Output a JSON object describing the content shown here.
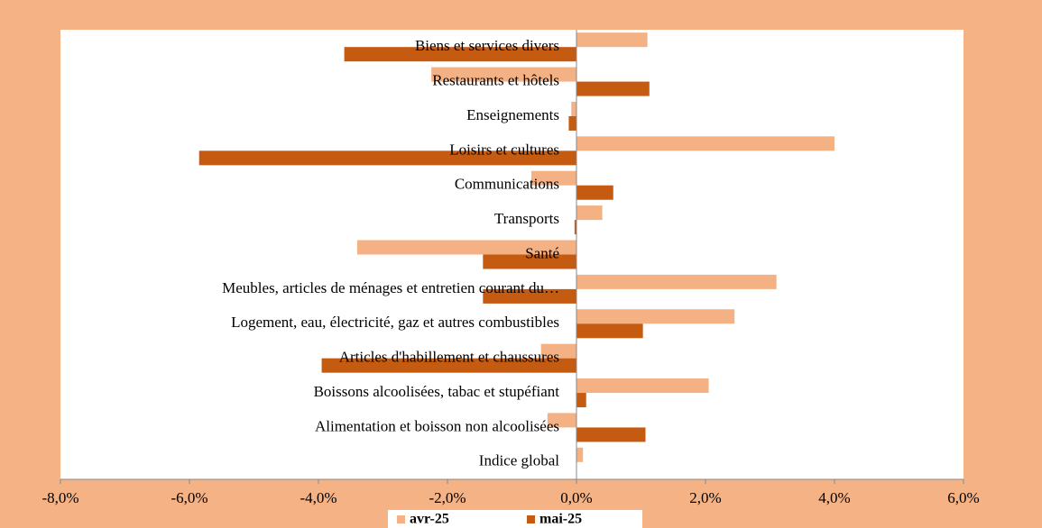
{
  "chart_data": {
    "type": "hbar",
    "categories": [
      "Biens et services divers",
      "Restaurants et hôtels",
      "Enseignements",
      "Loisirs et cultures",
      "Communications",
      "Transports",
      "Santé",
      "Meubles, articles de ménages et entretien courant du…",
      "Logement, eau, électricité, gaz et autres combustibles",
      "Articles d'habillement et chaussures",
      "Boissons alcoolisées, tabac et stupéfiant",
      "Alimentation et boisson non alcoolisées",
      "Indice global"
    ],
    "series": [
      {
        "name": "avr-25",
        "color": "#f4b183",
        "values": [
          1.1,
          -2.25,
          -0.08,
          4.0,
          -0.7,
          0.4,
          -3.4,
          3.1,
          2.45,
          -0.55,
          2.05,
          -0.45,
          0.1
        ]
      },
      {
        "name": "mai-25",
        "color": "#c55a11",
        "values": [
          -3.6,
          1.13,
          -0.12,
          -5.85,
          0.57,
          -0.03,
          -1.45,
          -1.45,
          1.03,
          -3.95,
          0.15,
          1.07,
          0
        ]
      }
    ],
    "xlim": [
      -8,
      6
    ],
    "xticks": [
      {
        "value": -8,
        "label": "-8,0%"
      },
      {
        "value": -6,
        "label": "-6,0%"
      },
      {
        "value": -4,
        "label": "-4,0%"
      },
      {
        "value": -2,
        "label": "-2,0%"
      },
      {
        "value": 0,
        "label": "0,0%"
      },
      {
        "value": 2,
        "label": "2,0%"
      },
      {
        "value": 4,
        "label": "4,0%"
      },
      {
        "value": 6,
        "label": "6,0%"
      }
    ],
    "legend": "bottom"
  }
}
